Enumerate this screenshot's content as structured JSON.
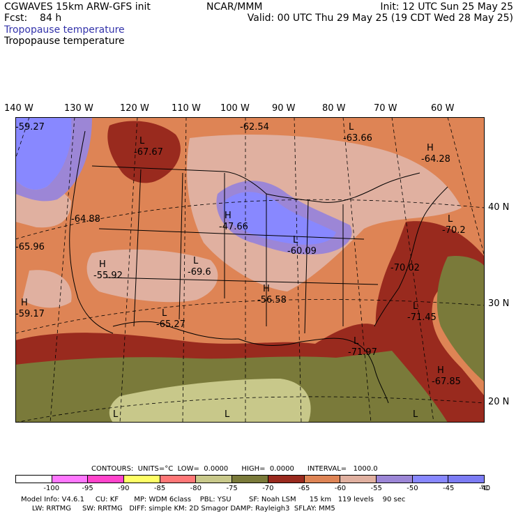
{
  "header": {
    "model_title": "CGWAVES 15km ARW-GFS init",
    "forecast": "Fcst:    84 h",
    "field_blue": "Tropopause temperature",
    "field_black": "Tropopause temperature",
    "institution": "NCAR/MMM",
    "init": "Init: 12 UTC Sun 25 May 25",
    "valid": "Valid: 00 UTC Thu 29 May 25 (19 CDT Wed 28 May 25)"
  },
  "lon_labels": [
    "140 W",
    "130 W",
    "120 W",
    "110 W",
    "100 W",
    "90 W",
    "80 W",
    "70 W",
    "60 W"
  ],
  "lat_labels": [
    "40 N",
    "30 N",
    "20 N"
  ],
  "map_labels": [
    {
      "mark": "L",
      "value": "-67.67"
    },
    {
      "mark": "",
      "value": "-62.54"
    },
    {
      "mark": "L",
      "value": "-63.66"
    },
    {
      "mark": "H",
      "value": "-64.28"
    },
    {
      "mark": "",
      "value": "-59.27"
    },
    {
      "mark": "",
      "value": "-64.88"
    },
    {
      "mark": "H",
      "value": "-47.66"
    },
    {
      "mark": "L",
      "value": "-60.09"
    },
    {
      "mark": "L",
      "value": "-70.2"
    },
    {
      "mark": "",
      "value": "-65.96"
    },
    {
      "mark": "H",
      "value": "-55.92"
    },
    {
      "mark": "L",
      "value": "-69.6"
    },
    {
      "mark": "H",
      "value": "-56.58"
    },
    {
      "mark": "",
      "value": "-70.02"
    },
    {
      "mark": "L",
      "value": "-71.45"
    },
    {
      "mark": "H",
      "value": "-59.17"
    },
    {
      "mark": "L",
      "value": "-65.27"
    },
    {
      "mark": "L",
      "value": "-71.97"
    },
    {
      "mark": "H",
      "value": "-67.85"
    },
    {
      "mark": "L",
      "value": ""
    },
    {
      "mark": "L",
      "value": ""
    },
    {
      "mark": "L",
      "value": ""
    }
  ],
  "contours_line": "CONTOURS:  UNITS=°C  LOW=  0.0000      HIGH=  0.0000      INTERVAL=   1000.0",
  "color_scale": {
    "colors": [
      "#ffffff",
      "#ff77ff",
      "#ff44cc",
      "#ffff66",
      "#ff7777",
      "#c8c88a",
      "#7a7a3a",
      "#992a1e",
      "#de8455",
      "#e0b0a0",
      "#9c86d6",
      "#8888ff",
      "#7c7cf4"
    ],
    "tick_labels": [
      "-100",
      "-95",
      "-90",
      "-85",
      "-80",
      "-75",
      "-70",
      "-65",
      "-60",
      "-55",
      "-50",
      "-45",
      "-40"
    ],
    "unit": "°C"
  },
  "model_info_1": "Model Info: V4.6.1     CU: KF       MP: WDM 6class    PBL: YSU        SF: Noah LSM      15 km   119 levels    90 sec",
  "model_info_2": "     LW: RRTMG     SW: RRTMG   DIFF: simple KM: 2D Smagor DAMP: Rayleigh3  SFLAY: MM5"
}
